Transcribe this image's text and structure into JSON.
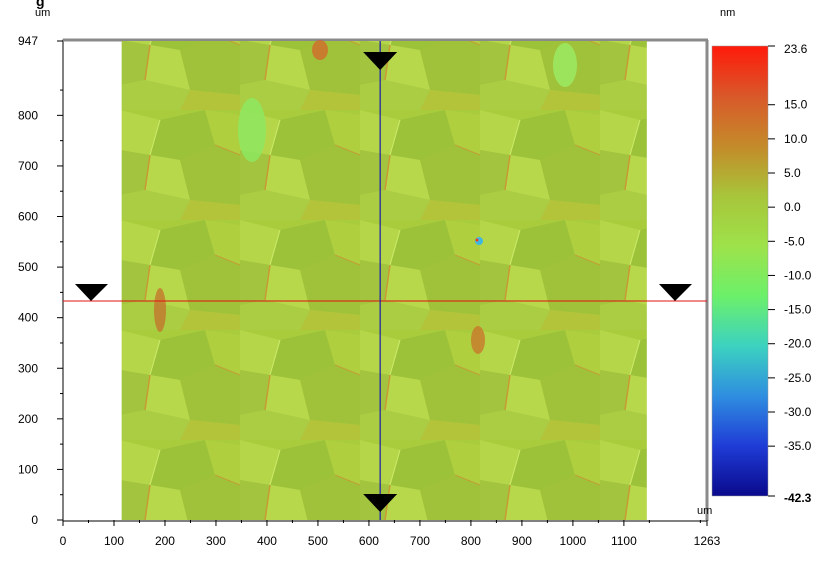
{
  "title_partial": "g",
  "axes": {
    "x_unit": "um",
    "y_unit": "um",
    "x_ticks": [
      "0",
      "100",
      "200",
      "300",
      "400",
      "500",
      "600",
      "700",
      "800",
      "900",
      "1000",
      "1100",
      "1263"
    ],
    "y_ticks": [
      "0",
      "100",
      "200",
      "300",
      "400",
      "500",
      "600",
      "700",
      "800",
      "947"
    ]
  },
  "colorbar": {
    "unit": "nm",
    "max_label": "23.6",
    "min_label": "-42.3",
    "min_value": -42.3,
    "max_value": 23.6,
    "labels": [
      {
        "text": "15.0",
        "value": 15.0
      },
      {
        "text": "10.0",
        "value": 10.0
      },
      {
        "text": "5.0",
        "value": 5.0
      },
      {
        "text": "0.0",
        "value": 0.0
      },
      {
        "text": "-5.0",
        "value": -5.0
      },
      {
        "text": "-10.0",
        "value": -10.0
      },
      {
        "text": "-15.0",
        "value": -15.0
      },
      {
        "text": "-20.0",
        "value": -20.0
      },
      {
        "text": "-25.0",
        "value": -25.0
      },
      {
        "text": "-30.0",
        "value": -30.0
      },
      {
        "text": "-35.0",
        "value": -35.0
      }
    ],
    "colors": [
      "#0a0a8c",
      "#1f3cd6",
      "#2f8ee0",
      "#3cd2c0",
      "#6cf06a",
      "#9ee24a",
      "#a8c53a",
      "#c48a2a",
      "#d9582a",
      "#ff1a0a"
    ]
  },
  "cursors": {
    "vertical_x_um": 622,
    "horizontal_y_um": 433,
    "vertical_color": "#1a1aa8",
    "horizontal_color": "#e01010"
  },
  "image": {
    "x_start_um": 115,
    "x_end_um": 1145,
    "base_color": "#a8cc3c"
  }
}
